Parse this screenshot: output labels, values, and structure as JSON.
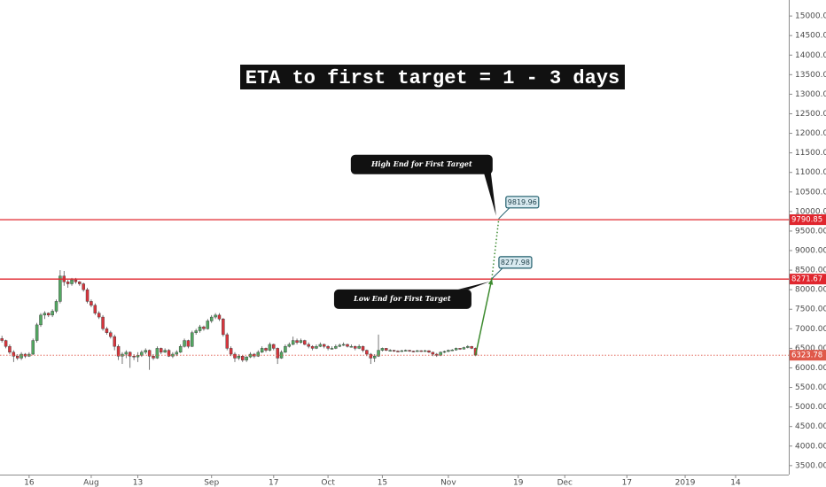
{
  "chart_data": {
    "type": "candlestick",
    "title": "ETA to first target = 1 - 3 days",
    "up_color": "#53a862",
    "down_color": "#d8353d",
    "level_color": "#e0262e",
    "arrow_color": "#3d8b2f",
    "grid": false,
    "xlim": [
      -7.5,
      195.7
    ],
    "xticks": [
      {
        "value": 0,
        "label": "16"
      },
      {
        "value": 16,
        "label": "Aug"
      },
      {
        "value": 28,
        "label": "13"
      },
      {
        "value": 47,
        "label": "Sep"
      },
      {
        "value": 63,
        "label": "17"
      },
      {
        "value": 77,
        "label": "Oct"
      },
      {
        "value": 91,
        "label": "15"
      },
      {
        "value": 108,
        "label": "Nov"
      },
      {
        "value": 126,
        "label": "19"
      },
      {
        "value": 138,
        "label": "Dec"
      },
      {
        "value": 154,
        "label": "17"
      },
      {
        "value": 169,
        "label": "2019"
      },
      {
        "value": 182,
        "label": "14"
      }
    ],
    "ylim": [
      3270,
      15410
    ],
    "yticks": [
      {
        "value": 3500,
        "label": "3500.00"
      },
      {
        "value": 4000,
        "label": "4000.00"
      },
      {
        "value": 4500,
        "label": "4500.00"
      },
      {
        "value": 5000,
        "label": "5000.00"
      },
      {
        "value": 5500,
        "label": "5500.00"
      },
      {
        "value": 6000,
        "label": "6000.00"
      },
      {
        "value": 6500,
        "label": "6500.00"
      },
      {
        "value": 7000,
        "label": "7000.00"
      },
      {
        "value": 7500,
        "label": "7500.00"
      },
      {
        "value": 8000,
        "label": "8000.00"
      },
      {
        "value": 8500,
        "label": "8500.00"
      },
      {
        "value": 9000,
        "label": "9000.00"
      },
      {
        "value": 9500,
        "label": "9500.00"
      },
      {
        "value": 10000,
        "label": "10000.00"
      },
      {
        "value": 10500,
        "label": "10500.00"
      },
      {
        "value": 11000,
        "label": "11000.00"
      },
      {
        "value": 11500,
        "label": "11500.00"
      },
      {
        "value": 12000,
        "label": "12000.00"
      },
      {
        "value": 12500,
        "label": "12500.00"
      },
      {
        "value": 13000,
        "label": "13000.00"
      },
      {
        "value": 13500,
        "label": "13500.00"
      },
      {
        "value": 14000,
        "label": "14000.00"
      },
      {
        "value": 14500,
        "label": "14500.00"
      },
      {
        "value": 15000,
        "label": "15000.00"
      }
    ],
    "levels": [
      9790.85,
      8271.67
    ],
    "last_price": 6323.78,
    "targets": [
      {
        "label": "Low End for First Target",
        "value": 8277.98,
        "x": 119.2
      },
      {
        "label": "High End for First Target",
        "value": 9819.96,
        "x": 121
      }
    ],
    "x": [
      -7,
      -6,
      -5,
      -4,
      -3,
      -2,
      -1,
      0,
      1,
      2,
      3,
      4,
      5,
      6,
      7,
      8,
      9,
      10,
      11,
      12,
      13,
      14,
      15,
      16,
      17,
      18,
      19,
      20,
      21,
      22,
      23,
      24,
      25,
      26,
      27,
      28,
      29,
      30,
      31,
      32,
      33,
      34,
      35,
      36,
      37,
      38,
      39,
      40,
      41,
      42,
      43,
      44,
      45,
      46,
      47,
      48,
      49,
      50,
      51,
      52,
      53,
      54,
      55,
      56,
      57,
      58,
      59,
      60,
      61,
      62,
      63,
      64,
      65,
      66,
      67,
      68,
      69,
      70,
      71,
      72,
      73,
      74,
      75,
      76,
      77,
      78,
      79,
      80,
      81,
      82,
      83,
      84,
      85,
      86,
      87,
      88,
      89,
      90,
      91,
      92,
      93,
      94,
      95,
      96,
      97,
      98,
      99,
      100,
      101,
      102,
      103,
      104,
      105,
      106,
      107,
      108,
      109,
      110,
      111,
      112,
      113,
      114,
      115
    ],
    "ohlc": [
      [
        6750,
        6820,
        6650,
        6700
      ],
      [
        6700,
        6720,
        6500,
        6550
      ],
      [
        6550,
        6600,
        6350,
        6400
      ],
      [
        6400,
        6450,
        6150,
        6300
      ],
      [
        6300,
        6350,
        6200,
        6250
      ],
      [
        6250,
        6400,
        6200,
        6350
      ],
      [
        6350,
        6380,
        6250,
        6300
      ],
      [
        6300,
        6400,
        6280,
        6350
      ],
      [
        6350,
        6750,
        6330,
        6700
      ],
      [
        6700,
        7150,
        6650,
        7100
      ],
      [
        7100,
        7400,
        7050,
        7350
      ],
      [
        7350,
        7450,
        7250,
        7400
      ],
      [
        7400,
        7420,
        7300,
        7350
      ],
      [
        7350,
        7500,
        7300,
        7450
      ],
      [
        7450,
        7750,
        7400,
        7700
      ],
      [
        7700,
        8500,
        7650,
        8350
      ],
      [
        8350,
        8480,
        8100,
        8200
      ],
      [
        8200,
        8250,
        8050,
        8150
      ],
      [
        8150,
        8300,
        8100,
        8250
      ],
      [
        8250,
        8300,
        8150,
        8200
      ],
      [
        8200,
        8220,
        8100,
        8150
      ],
      [
        8150,
        8180,
        7950,
        8000
      ],
      [
        8000,
        8050,
        7650,
        7700
      ],
      [
        7700,
        7750,
        7550,
        7600
      ],
      [
        7600,
        7650,
        7350,
        7400
      ],
      [
        7400,
        7450,
        7250,
        7300
      ],
      [
        7300,
        7350,
        6950,
        7000
      ],
      [
        7000,
        7050,
        6850,
        6900
      ],
      [
        6900,
        6950,
        6750,
        6800
      ],
      [
        6800,
        6850,
        6450,
        6550
      ],
      [
        6550,
        6600,
        6200,
        6300
      ],
      [
        6300,
        6400,
        6100,
        6350
      ],
      [
        6350,
        6450,
        6250,
        6400
      ],
      [
        6400,
        6420,
        6000,
        6300
      ],
      [
        6300,
        6350,
        6200,
        6280
      ],
      [
        6280,
        6400,
        6150,
        6320
      ],
      [
        6320,
        6450,
        6280,
        6400
      ],
      [
        6400,
        6500,
        6350,
        6450
      ],
      [
        6450,
        6470,
        5950,
        6300
      ],
      [
        6300,
        6350,
        6200,
        6250
      ],
      [
        6250,
        6550,
        6230,
        6500
      ],
      [
        6500,
        6520,
        6350,
        6400
      ],
      [
        6400,
        6500,
        6380,
        6450
      ],
      [
        6450,
        6480,
        6280,
        6300
      ],
      [
        6300,
        6400,
        6250,
        6350
      ],
      [
        6350,
        6450,
        6300,
        6400
      ],
      [
        6400,
        6600,
        6380,
        6550
      ],
      [
        6550,
        6750,
        6520,
        6700
      ],
      [
        6700,
        6720,
        6500,
        6550
      ],
      [
        6550,
        6950,
        6530,
        6900
      ],
      [
        6900,
        7000,
        6850,
        6950
      ],
      [
        6950,
        7100,
        6900,
        7050
      ],
      [
        7050,
        7080,
        6950,
        7000
      ],
      [
        7000,
        7250,
        6980,
        7200
      ],
      [
        7200,
        7350,
        7150,
        7300
      ],
      [
        7300,
        7400,
        7250,
        7350
      ],
      [
        7350,
        7400,
        7200,
        7250
      ],
      [
        7250,
        7280,
        6800,
        6850
      ],
      [
        6850,
        6900,
        6450,
        6500
      ],
      [
        6500,
        6550,
        6300,
        6350
      ],
      [
        6350,
        6400,
        6150,
        6250
      ],
      [
        6250,
        6350,
        6200,
        6300
      ],
      [
        6300,
        6320,
        6150,
        6200
      ],
      [
        6200,
        6300,
        6150,
        6280
      ],
      [
        6280,
        6400,
        6250,
        6350
      ],
      [
        6350,
        6380,
        6250,
        6300
      ],
      [
        6300,
        6450,
        6280,
        6400
      ],
      [
        6400,
        6550,
        6380,
        6500
      ],
      [
        6500,
        6520,
        6400,
        6450
      ],
      [
        6450,
        6650,
        6420,
        6600
      ],
      [
        6600,
        6620,
        6450,
        6500
      ],
      [
        6500,
        6520,
        6100,
        6250
      ],
      [
        6250,
        6450,
        6230,
        6400
      ],
      [
        6400,
        6600,
        6380,
        6550
      ],
      [
        6550,
        6650,
        6520,
        6600
      ],
      [
        6600,
        6800,
        6580,
        6700
      ],
      [
        6700,
        6750,
        6600,
        6650
      ],
      [
        6650,
        6750,
        6620,
        6700
      ],
      [
        6700,
        6720,
        6580,
        6600
      ],
      [
        6600,
        6650,
        6500,
        6550
      ],
      [
        6550,
        6580,
        6450,
        6500
      ],
      [
        6500,
        6600,
        6480,
        6550
      ],
      [
        6550,
        6650,
        6530,
        6600
      ],
      [
        6600,
        6620,
        6500,
        6550
      ],
      [
        6550,
        6580,
        6450,
        6500
      ],
      [
        6500,
        6550,
        6470,
        6500
      ],
      [
        6500,
        6600,
        6480,
        6550
      ],
      [
        6550,
        6620,
        6530,
        6580
      ],
      [
        6580,
        6650,
        6560,
        6600
      ],
      [
        6600,
        6620,
        6520,
        6550
      ],
      [
        6550,
        6600,
        6520,
        6550
      ],
      [
        6550,
        6570,
        6450,
        6500
      ],
      [
        6500,
        6600,
        6480,
        6550
      ],
      [
        6550,
        6570,
        6400,
        6450
      ],
      [
        6450,
        6470,
        6300,
        6350
      ],
      [
        6350,
        6380,
        6100,
        6250
      ],
      [
        6250,
        6350,
        6150,
        6300
      ],
      [
        6300,
        6850,
        6280,
        6450
      ],
      [
        6450,
        6520,
        6420,
        6500
      ],
      [
        6500,
        6510,
        6430,
        6450
      ],
      [
        6450,
        6480,
        6420,
        6450
      ],
      [
        6450,
        6460,
        6410,
        6430
      ],
      [
        6430,
        6450,
        6400,
        6420
      ],
      [
        6420,
        6460,
        6410,
        6440
      ],
      [
        6440,
        6470,
        6420,
        6450
      ],
      [
        6450,
        6460,
        6410,
        6430
      ],
      [
        6430,
        6440,
        6400,
        6420
      ],
      [
        6420,
        6460,
        6410,
        6440
      ],
      [
        6440,
        6450,
        6410,
        6430
      ],
      [
        6430,
        6460,
        6420,
        6440
      ],
      [
        6440,
        6450,
        6380,
        6400
      ],
      [
        6400,
        6410,
        6300,
        6350
      ],
      [
        6350,
        6380,
        6280,
        6320
      ],
      [
        6320,
        6420,
        6300,
        6400
      ],
      [
        6400,
        6440,
        6380,
        6420
      ],
      [
        6420,
        6470,
        6400,
        6450
      ],
      [
        6450,
        6480,
        6430,
        6460
      ],
      [
        6460,
        6520,
        6440,
        6500
      ],
      [
        6500,
        6510,
        6460,
        6480
      ],
      [
        6480,
        6540,
        6470,
        6520
      ],
      [
        6520,
        6580,
        6500,
        6550
      ],
      [
        6550,
        6560,
        6480,
        6500
      ],
      [
        6500,
        6520,
        6300,
        6323.78
      ]
    ]
  }
}
